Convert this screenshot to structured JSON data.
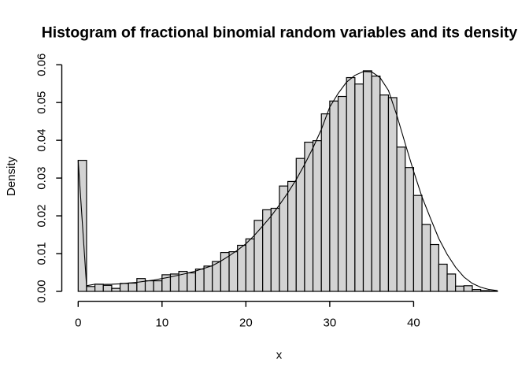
{
  "chart_data": {
    "type": "histogram+line",
    "title": "Histogram of fractional binomial random variables and its density",
    "xlabel": "x",
    "ylabel": "Density",
    "grid": false,
    "legend": null,
    "histogram": {
      "bin_start": 0,
      "bin_width": 1,
      "densities": [
        0.0347,
        0.0013,
        0.0019,
        0.0016,
        0.0008,
        0.0021,
        0.0022,
        0.0034,
        0.0028,
        0.0028,
        0.0044,
        0.0046,
        0.0053,
        0.0049,
        0.0059,
        0.0067,
        0.0079,
        0.0103,
        0.0105,
        0.0122,
        0.0139,
        0.0188,
        0.0216,
        0.022,
        0.0279,
        0.0291,
        0.0352,
        0.0395,
        0.0399,
        0.047,
        0.0504,
        0.0516,
        0.0566,
        0.0549,
        0.0584,
        0.057,
        0.052,
        0.0513,
        0.0382,
        0.0328,
        0.0254,
        0.0177,
        0.0124,
        0.0072,
        0.0046,
        0.0014,
        0.0015,
        0.0005,
        0.0002,
        0.0001
      ]
    },
    "density_curve": {
      "x": [
        0,
        1,
        2,
        3,
        4,
        5,
        6,
        7,
        8,
        9,
        10,
        11,
        12,
        13,
        14,
        15,
        16,
        17,
        18,
        19,
        20,
        21,
        22,
        23,
        24,
        25,
        26,
        27,
        28,
        29,
        30,
        31,
        32,
        33,
        34,
        35,
        36,
        37,
        38,
        39,
        40,
        41,
        42,
        43,
        44,
        45,
        46,
        47,
        48,
        49,
        50
      ],
      "y": [
        0.0347,
        0.0015,
        0.0019,
        0.00185,
        0.0019,
        0.002,
        0.0022,
        0.0024,
        0.0027,
        0.003,
        0.0034,
        0.0038,
        0.0043,
        0.0048,
        0.0054,
        0.0061,
        0.0068,
        0.008,
        0.0094,
        0.0109,
        0.0126,
        0.0148,
        0.0173,
        0.0199,
        0.0229,
        0.0261,
        0.0296,
        0.0336,
        0.038,
        0.0429,
        0.0488,
        0.0524,
        0.0554,
        0.0572,
        0.0582,
        0.0581,
        0.0566,
        0.0532,
        0.0466,
        0.0391,
        0.0318,
        0.025,
        0.0194,
        0.014,
        0.0098,
        0.0064,
        0.0038,
        0.0021,
        0.0011,
        0.0005,
        0.0002
      ]
    },
    "x_ticks": [
      0,
      10,
      20,
      30,
      40
    ],
    "x_tick_labels": [
      "0",
      "10",
      "20",
      "30",
      "40"
    ],
    "y_ticks": [
      0.0,
      0.01,
      0.02,
      0.03,
      0.04,
      0.05,
      0.06
    ],
    "y_tick_labels": [
      "0.00",
      "0.01",
      "0.02",
      "0.03",
      "0.04",
      "0.05",
      "0.06"
    ],
    "xlim": [
      0,
      50
    ],
    "ylim": [
      0,
      0.06
    ],
    "colors": {
      "bar_fill": "#d3d3d3",
      "bar_border": "#000000",
      "curve": "#000000",
      "axis": "#000000",
      "text": "#000000",
      "background": "#ffffff"
    }
  }
}
